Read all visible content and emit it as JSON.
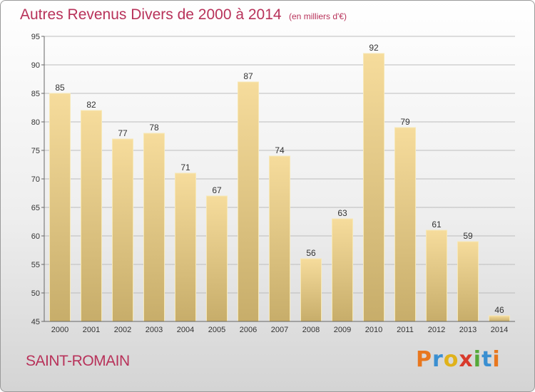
{
  "title": "Autres Revenus Divers de 2000 à 2014",
  "subtitle": "(en milliers d'€)",
  "place_name": "SAINT-ROMAIN",
  "logo": {
    "text": "Proxiti",
    "letter_colors": [
      "#e8771e",
      "#3a8fd1",
      "#e0b21b",
      "#d83a2c",
      "#55a839",
      "#3a8fd1",
      "#e8771e"
    ]
  },
  "colors": {
    "title": "#b8325a",
    "bar_top": "#f6dc9c",
    "bar_bottom": "#c7ad6a",
    "bar_stroke": "#f7e9b8",
    "grid": "#bcbcbc"
  },
  "chart_data": {
    "type": "bar",
    "title": "Autres Revenus Divers de 2000 à 2014",
    "subtitle": "(en milliers d'€)",
    "categories": [
      "2000",
      "2001",
      "2002",
      "2003",
      "2004",
      "2005",
      "2006",
      "2007",
      "2008",
      "2009",
      "2010",
      "2011",
      "2012",
      "2013",
      "2014"
    ],
    "values": [
      85,
      82,
      77,
      78,
      71,
      67,
      87,
      74,
      56,
      63,
      92,
      79,
      61,
      59,
      46
    ],
    "ylim": [
      45,
      95
    ],
    "yticks": [
      45,
      50,
      55,
      60,
      65,
      70,
      75,
      80,
      85,
      90,
      95
    ],
    "grid": true,
    "xlabel": "",
    "ylabel": ""
  }
}
